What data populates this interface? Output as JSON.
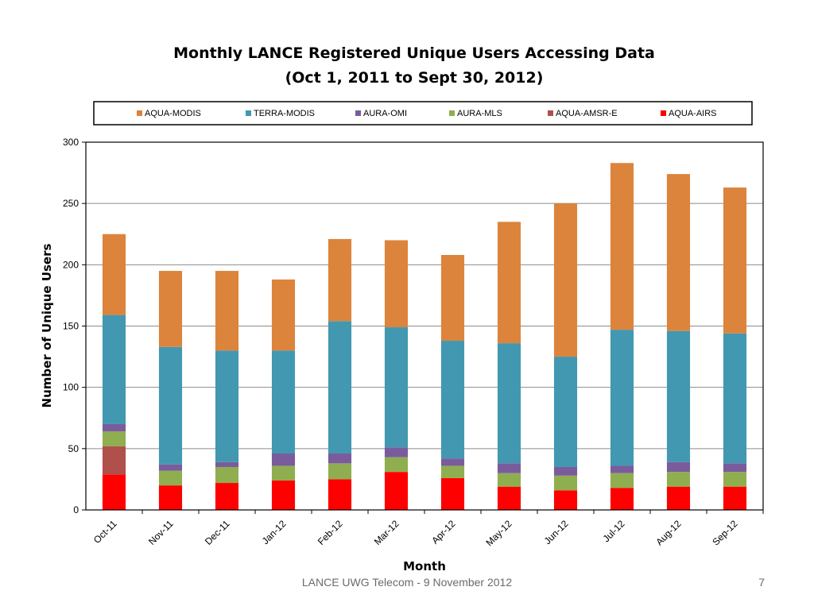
{
  "footer": {
    "text": "LANCE UWG Telecom - 9 November 2012",
    "page_number": "7"
  },
  "chart_data": {
    "type": "bar",
    "stacked": true,
    "title": "Monthly LANCE Registered  Unique Users  Accessing Data",
    "subtitle": "(Oct 1, 2011  to  Sept 30, 2012)",
    "xlabel": "Month",
    "ylabel": "Number of  Unique  Users",
    "ylim": [
      0,
      300
    ],
    "yticks": [
      0,
      50,
      100,
      150,
      200,
      250,
      300
    ],
    "grid": true,
    "legend_position": "top",
    "categories": [
      "Oct-11",
      "Nov-11",
      "Dec-11",
      "Jan-12",
      "Feb-12",
      "Mar-12",
      "Apr-12",
      "May-12",
      "Jun-12",
      "Jul-12",
      "Aug-12",
      "Sep-12"
    ],
    "series": [
      {
        "name": "AQUA-AIRS",
        "color": "#ff0000",
        "values": [
          29,
          20,
          22,
          24,
          25,
          31,
          26,
          19,
          16,
          18,
          19,
          19
        ]
      },
      {
        "name": "AQUA-AMSR-E",
        "color": "#b0504b",
        "values": [
          23,
          0,
          0,
          0,
          0,
          0,
          0,
          0,
          0,
          0,
          0,
          0
        ]
      },
      {
        "name": "AURA-MLS",
        "color": "#8fae4f",
        "values": [
          12,
          12,
          13,
          12,
          13,
          12,
          10,
          11,
          12,
          12,
          12,
          12
        ]
      },
      {
        "name": "AURA-OMI",
        "color": "#7a5c9c",
        "values": [
          6,
          5,
          4,
          10,
          8,
          8,
          6,
          8,
          7,
          6,
          8,
          7
        ]
      },
      {
        "name": "TERRA-MODIS",
        "color": "#4298b0",
        "values": [
          89,
          96,
          91,
          84,
          108,
          98,
          96,
          98,
          90,
          111,
          107,
          106
        ]
      },
      {
        "name": "AQUA-MODIS",
        "color": "#dc843c",
        "values": [
          66,
          62,
          65,
          58,
          67,
          71,
          70,
          99,
          125,
          136,
          128,
          119
        ]
      }
    ],
    "legend_order": [
      "AQUA-MODIS",
      "TERRA-MODIS",
      "AURA-OMI",
      "AURA-MLS",
      "AQUA-AMSR-E",
      "AQUA-AIRS"
    ]
  }
}
